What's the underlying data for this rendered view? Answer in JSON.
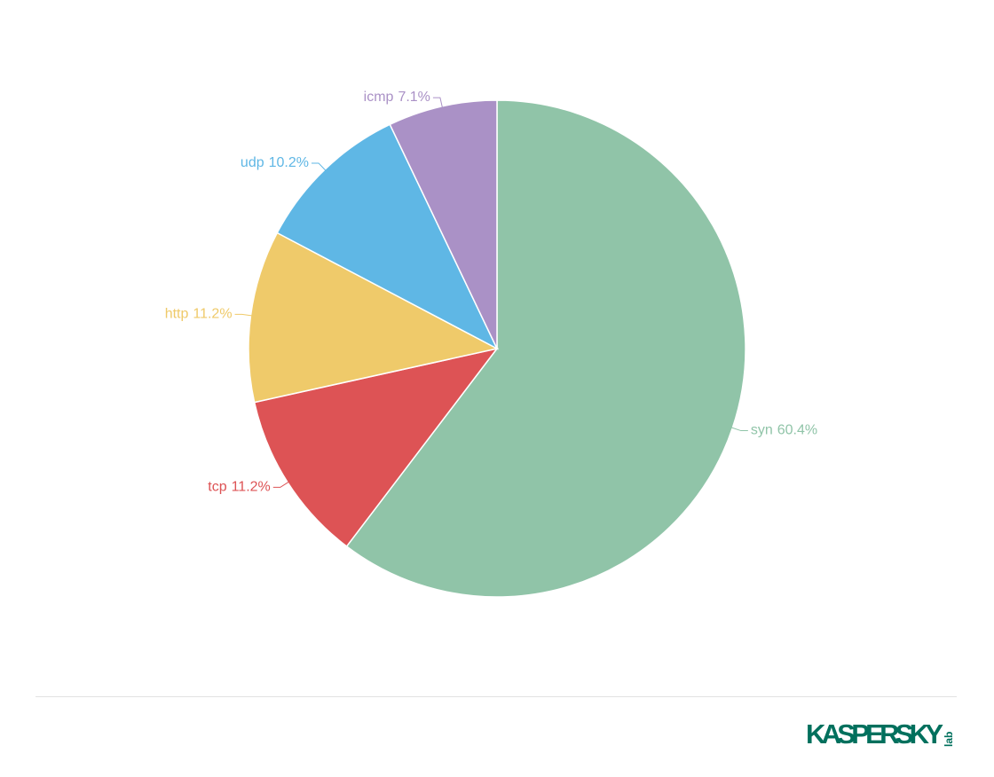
{
  "chart_data": {
    "type": "pie",
    "categories": [
      "syn",
      "tcp",
      "http",
      "udp",
      "icmp"
    ],
    "values": [
      60.4,
      11.2,
      11.2,
      10.2,
      7.1
    ],
    "value_labels": [
      "60.4%",
      "11.2%",
      "11.2%",
      "10.2%",
      "7.1%"
    ],
    "colors": [
      "#90c4a8",
      "#dd5355",
      "#efca6a",
      "#5fb7e5",
      "#aa91c6"
    ]
  },
  "footer": {
    "logo": "KASPERSKY",
    "logo_suffix": "lab"
  }
}
